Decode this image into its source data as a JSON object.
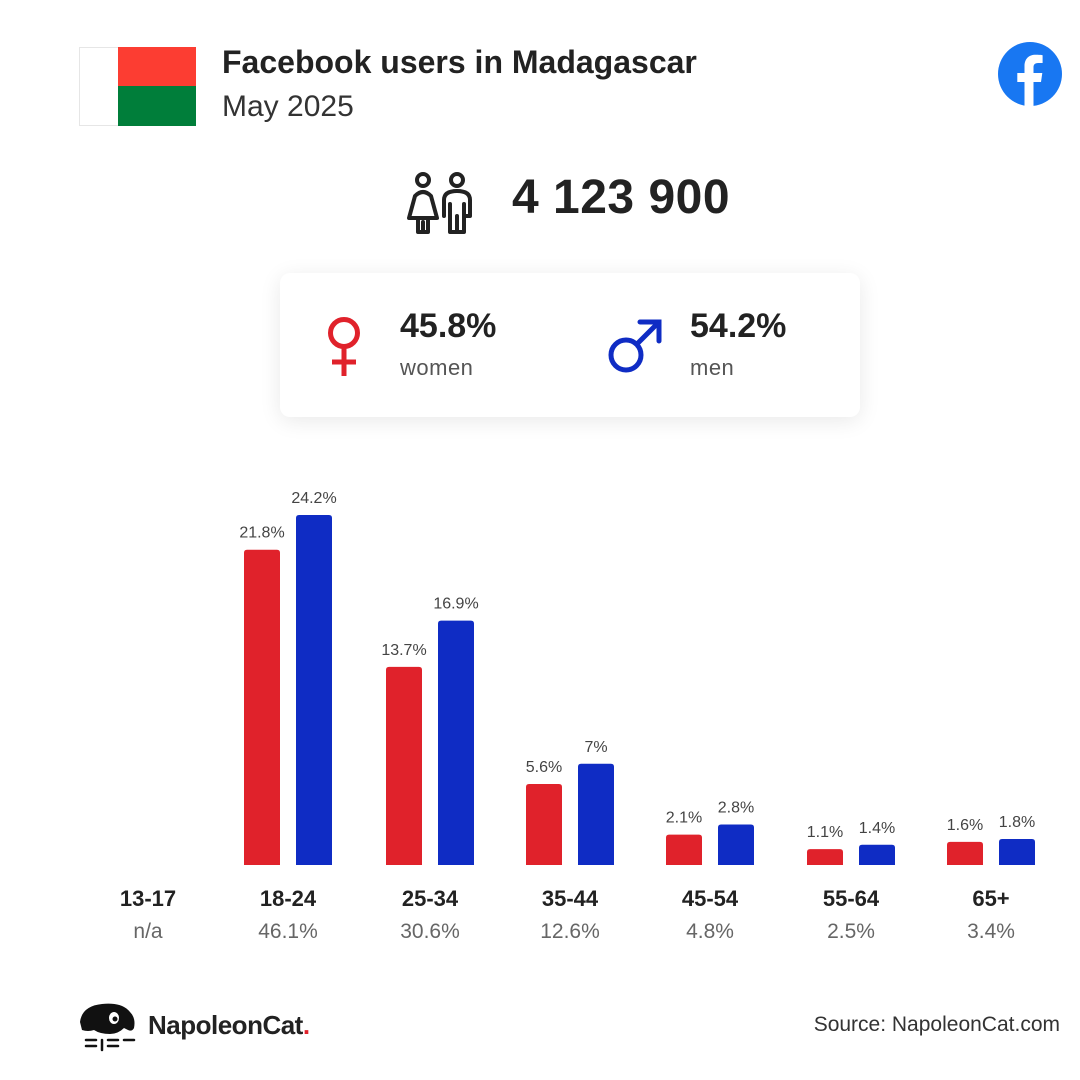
{
  "header": {
    "title": "Facebook users in Madagascar",
    "subtitle": "May 2025"
  },
  "flag": {
    "colors": {
      "white": "#ffffff",
      "red": "#fc3d32",
      "green": "#007e3a"
    }
  },
  "icons": {
    "brand": "facebook-logo-icon",
    "users": "users-icon",
    "female": "female-symbol-icon",
    "male": "male-symbol-icon",
    "footer": "napoleoncat-logo-icon"
  },
  "total_users": "4 123 900",
  "gender": {
    "women": {
      "pct": "45.8%",
      "label": "women",
      "color": "#e0222b"
    },
    "men": {
      "pct": "54.2%",
      "label": "men",
      "color": "#0f2cc4"
    }
  },
  "chart_data": {
    "type": "bar",
    "categories": [
      "13-17",
      "18-24",
      "25-34",
      "35-44",
      "45-54",
      "55-64",
      "65+"
    ],
    "totals": [
      "n/a",
      "46.1%",
      "30.6%",
      "12.6%",
      "4.8%",
      "2.5%",
      "3.4%"
    ],
    "series": [
      {
        "color": "#e0222b",
        "values": [
          null,
          21.8,
          13.7,
          5.6,
          2.1,
          1.1,
          1.6
        ],
        "labels": [
          "",
          "21.8%",
          "13.7%",
          "5.6%",
          "2.1%",
          "1.1%",
          "1.6%"
        ]
      },
      {
        "color": "#0f2cc4",
        "values": [
          null,
          24.2,
          16.9,
          7,
          2.8,
          1.4,
          1.8
        ],
        "labels": [
          "",
          "24.2%",
          "16.9%",
          "7%",
          "2.8%",
          "1.4%",
          "1.8%"
        ]
      }
    ],
    "ylim": [
      0,
      24.2
    ],
    "grid": false,
    "legend": "none"
  },
  "footer": {
    "brand": "NapoleonCat",
    "brand_dot": ".",
    "source": "Source: NapoleonCat.com"
  }
}
